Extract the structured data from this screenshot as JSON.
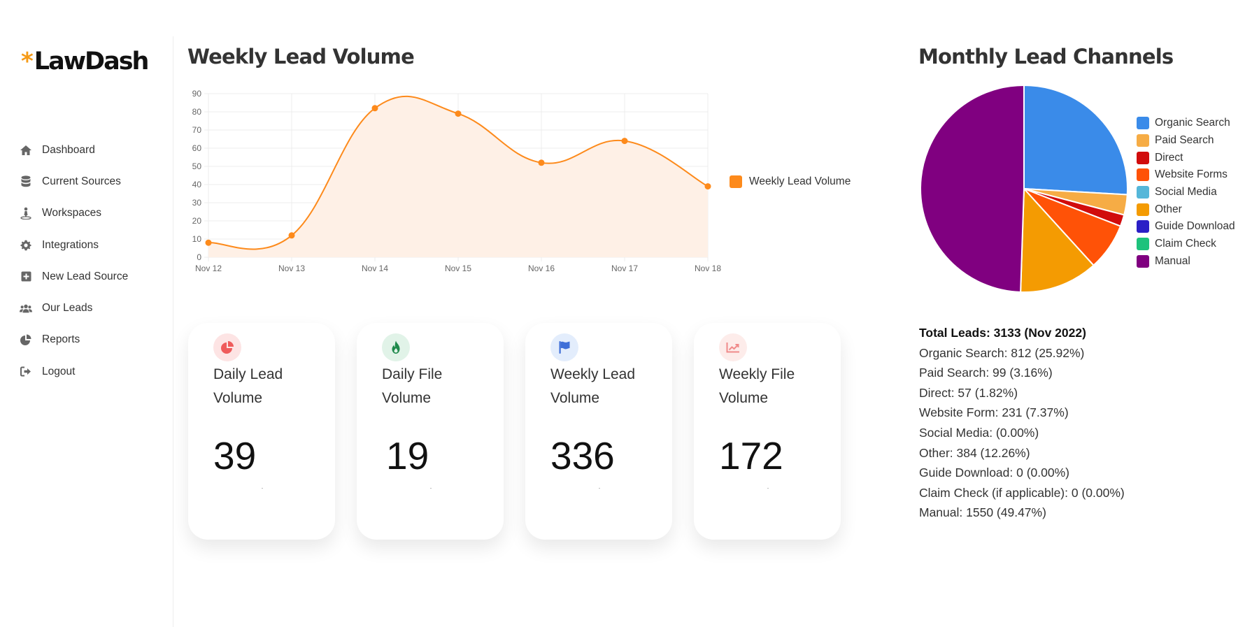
{
  "app": {
    "logo_mark": "*",
    "logo_text": "LawDash"
  },
  "sidebar": {
    "items": [
      {
        "label": "Dashboard",
        "icon": "home-icon"
      },
      {
        "label": "Current Sources",
        "icon": "database-icon"
      },
      {
        "label": "Workspaces",
        "icon": "person-icon"
      },
      {
        "label": "Integrations",
        "icon": "gear-icon"
      },
      {
        "label": "New Lead Source",
        "icon": "plus-square-icon"
      },
      {
        "label": "Our Leads",
        "icon": "users-icon"
      },
      {
        "label": "Reports",
        "icon": "pie-icon"
      },
      {
        "label": "Logout",
        "icon": "logout-icon"
      }
    ]
  },
  "line_section": {
    "title": "Weekly Lead Volume"
  },
  "pie_section": {
    "title": "Monthly Lead Channels"
  },
  "chart_data": [
    {
      "type": "line",
      "categories": [
        "Nov 12",
        "Nov 13",
        "Nov 14",
        "Nov 15",
        "Nov 16",
        "Nov 17",
        "Nov 18"
      ],
      "series": [
        {
          "name": "Weekly Lead Volume",
          "values": [
            8,
            12,
            82,
            79,
            52,
            64,
            39
          ],
          "color": "#fd8a1b"
        }
      ],
      "yticks": [
        "0",
        "10",
        "20",
        "30",
        "40",
        "50",
        "60",
        "70",
        "80",
        "90"
      ],
      "ylim": [
        0,
        90
      ],
      "grid": true,
      "legend": "right",
      "fill_color": "#fef0e6"
    },
    {
      "type": "pie",
      "labels": [
        "Organic Search",
        "Paid Search",
        "Direct",
        "Website Forms",
        "Social Media",
        "Other",
        "Guide Download",
        "Claim Check",
        "Manual"
      ],
      "values": [
        812,
        99,
        57,
        231,
        0,
        384,
        0,
        0,
        1550
      ],
      "colors": [
        "#3a8be9",
        "#f6ac45",
        "#d10c0c",
        "#ff5207",
        "#55b7d9",
        "#f49b02",
        "#2b1fc6",
        "#1ec27c",
        "#800080"
      ],
      "legend": "right"
    }
  ],
  "cards": [
    {
      "label": "Daily Lead Volume",
      "value": "39",
      "icon": "pie-chart-icon",
      "icon_color": "#ef5b5b",
      "icon_bg": "#fde4e4"
    },
    {
      "label": "Daily File Volume",
      "value": "19",
      "icon": "flame-icon",
      "icon_color": "#1f8a4c",
      "icon_bg": "#e1f3e8"
    },
    {
      "label": "Weekly Lead Volume",
      "value": "336",
      "icon": "flag-icon",
      "icon_color": "#3f6fd8",
      "icon_bg": "#e3edfc"
    },
    {
      "label": "Weekly File Volume",
      "value": "172",
      "icon": "trend-icon",
      "icon_color": "#f08a8a",
      "icon_bg": "#fdecea"
    }
  ],
  "stats": {
    "total": "Total Leads: 3133 (Nov 2022)",
    "lines": [
      "Organic Search: 812 (25.92%)",
      "Paid Search: 99 (3.16%)",
      "Direct: 57 (1.82%)",
      "Website Form: 231 (7.37%)",
      "Social Media: (0.00%)",
      "Other: 384 (12.26%)",
      "Guide Download: 0 (0.00%)",
      "Claim Check (if applicable): 0 (0.00%)",
      "Manual: 1550 (49.47%)"
    ]
  }
}
